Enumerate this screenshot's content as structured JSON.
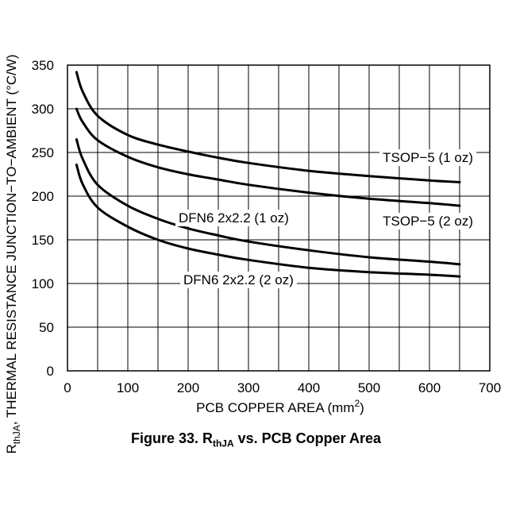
{
  "chart_data": {
    "type": "line",
    "title": "Figure 33. R<sub>thJA</sub> vs. PCB Copper Area",
    "xlabel": "PCB COPPER AREA (mm<sup>2</sup>)",
    "ylabel": "R<sub>thJA</sub>, THERMAL RESISTANCE JUNCTION−TO−AMBIENT (°C/W)",
    "xlim": [
      0,
      700
    ],
    "ylim": [
      0,
      350
    ],
    "xticks": [
      "0",
      "100",
      "200",
      "300",
      "400",
      "500",
      "600",
      "700"
    ],
    "yticks": [
      "0",
      "50",
      "100",
      "150",
      "200",
      "250",
      "300",
      "350"
    ],
    "grid": true,
    "series": [
      {
        "name": "TSOP−5 (1 oz)",
        "x": [
          15,
          25,
          50,
          100,
          150,
          200,
          250,
          300,
          400,
          500,
          600,
          650
        ],
        "y": [
          342,
          320,
          292,
          270,
          259,
          251,
          244,
          238,
          229,
          223,
          218,
          216
        ]
      },
      {
        "name": "TSOP−5 (2 oz)",
        "x": [
          15,
          25,
          50,
          100,
          150,
          200,
          250,
          300,
          400,
          500,
          600,
          650
        ],
        "y": [
          300,
          285,
          264,
          245,
          233,
          225,
          219,
          213,
          204,
          197,
          192,
          189
        ]
      },
      {
        "name": "DFN6 2x2.2 (1 oz)",
        "x": [
          15,
          25,
          50,
          100,
          150,
          200,
          250,
          300,
          400,
          500,
          600,
          650
        ],
        "y": [
          265,
          243,
          213,
          189,
          174,
          163,
          155,
          148,
          138,
          130,
          125,
          122
        ]
      },
      {
        "name": "DFN6 2x2.2 (2 oz)",
        "x": [
          15,
          25,
          50,
          100,
          150,
          200,
          250,
          300,
          400,
          500,
          600,
          650
        ],
        "y": [
          236,
          214,
          187,
          165,
          150,
          140,
          133,
          127,
          118,
          113,
          110,
          108
        ]
      }
    ]
  }
}
